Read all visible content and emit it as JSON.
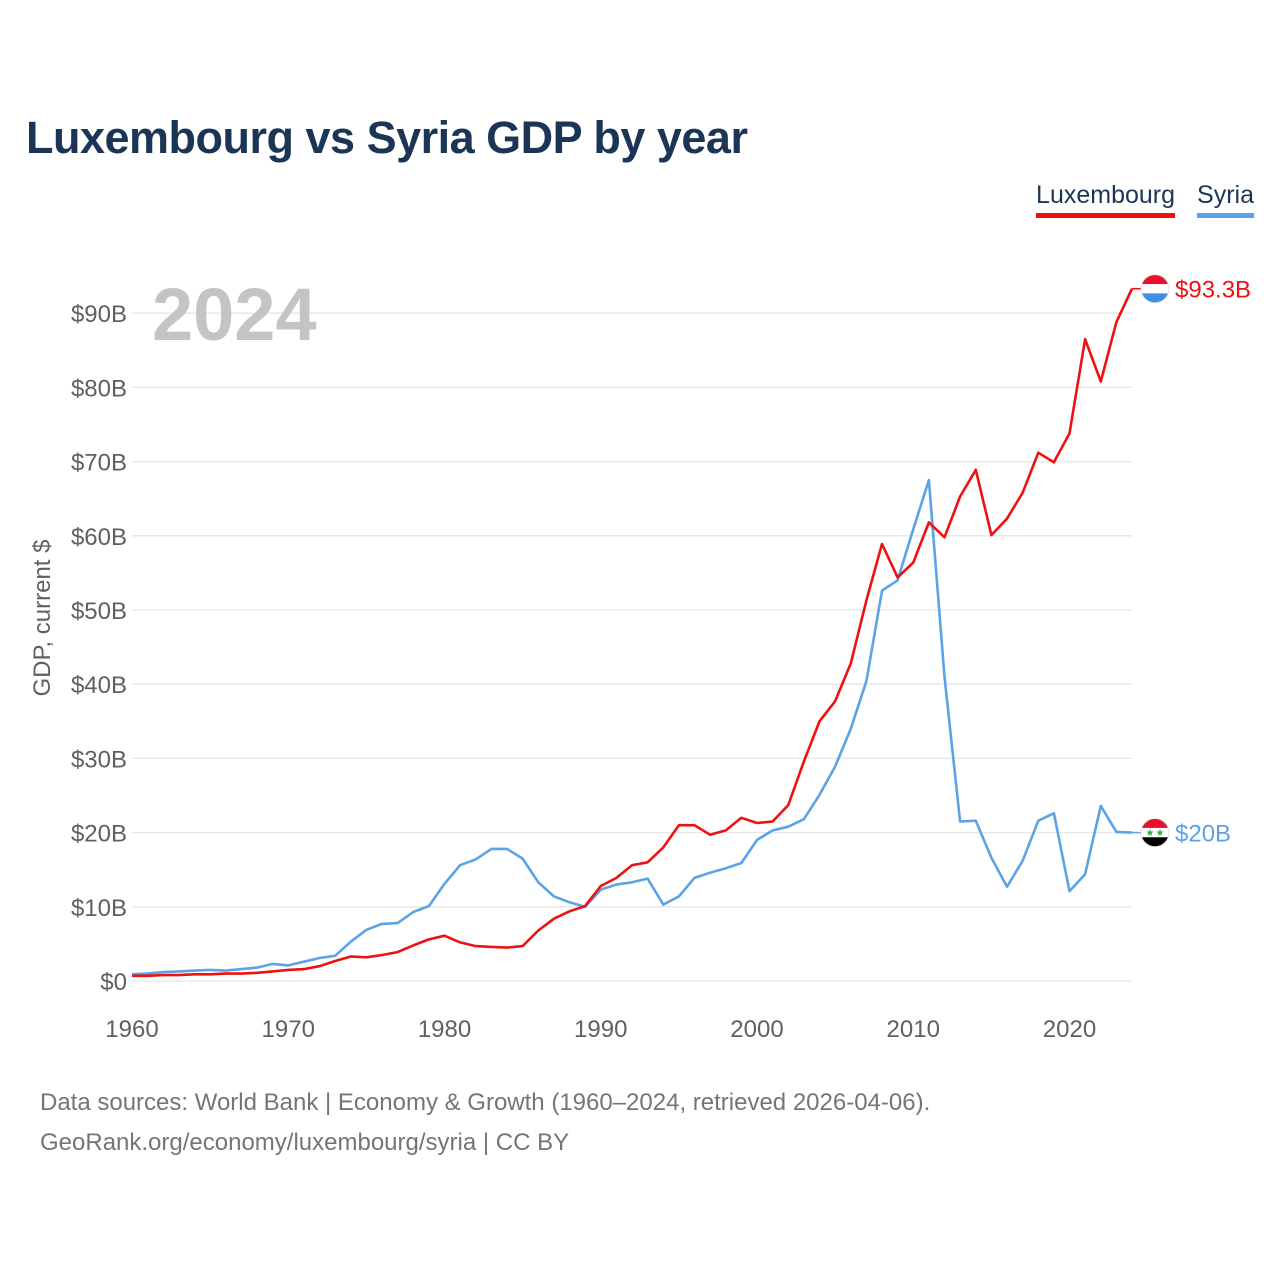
{
  "chart_data": {
    "type": "line",
    "title": "Luxembourg vs Syria GDP by year",
    "ylabel": "GDP, current $",
    "xlabel": "",
    "big_year": "2024",
    "xlim": [
      1960,
      2024
    ],
    "ylim": [
      0,
      93.3
    ],
    "x_ticks": [
      1960,
      1970,
      1980,
      1990,
      2000,
      2010,
      2020
    ],
    "y_ticks": [
      0,
      10,
      20,
      30,
      40,
      50,
      60,
      70,
      80,
      90
    ],
    "y_tick_labels": [
      "$0",
      "$10B",
      "$20B",
      "$30B",
      "$40B",
      "$50B",
      "$60B",
      "$70B",
      "$80B",
      "$90B"
    ],
    "years": [
      1960,
      1961,
      1962,
      1963,
      1964,
      1965,
      1966,
      1967,
      1968,
      1969,
      1970,
      1971,
      1972,
      1973,
      1974,
      1975,
      1976,
      1977,
      1978,
      1979,
      1980,
      1981,
      1982,
      1983,
      1984,
      1985,
      1986,
      1987,
      1988,
      1989,
      1990,
      1991,
      1992,
      1993,
      1994,
      1995,
      1996,
      1997,
      1998,
      1999,
      2000,
      2001,
      2002,
      2003,
      2004,
      2005,
      2006,
      2007,
      2008,
      2009,
      2010,
      2011,
      2012,
      2013,
      2014,
      2015,
      2016,
      2017,
      2018,
      2019,
      2020,
      2021,
      2022,
      2023,
      2024
    ],
    "series": [
      {
        "name": "Luxembourg",
        "color": "#ee1111",
        "end_label": "$93.3B",
        "flag": "luxembourg-flag",
        "values": [
          0.7,
          0.7,
          0.8,
          0.8,
          0.9,
          0.9,
          1.0,
          1.0,
          1.1,
          1.3,
          1.5,
          1.6,
          2.0,
          2.7,
          3.3,
          3.2,
          3.5,
          3.9,
          4.8,
          5.6,
          6.1,
          5.2,
          4.7,
          4.6,
          4.5,
          4.7,
          6.8,
          8.4,
          9.4,
          10.1,
          12.8,
          13.9,
          15.6,
          16.0,
          18.0,
          21.0,
          21.0,
          19.7,
          20.3,
          22.0,
          21.3,
          21.5,
          23.7,
          29.6,
          35.0,
          37.7,
          42.8,
          51.3,
          58.9,
          54.4,
          56.4,
          61.8,
          59.8,
          65.3,
          68.9,
          60.1,
          62.3,
          65.8,
          71.2,
          69.9,
          73.8,
          86.5,
          80.8,
          88.8,
          93.3
        ]
      },
      {
        "name": "Syria",
        "color": "#5ca3e6",
        "end_label": "$20B",
        "flag": "syria-flag",
        "values": [
          0.9,
          1.0,
          1.2,
          1.3,
          1.4,
          1.5,
          1.4,
          1.6,
          1.8,
          2.3,
          2.1,
          2.6,
          3.1,
          3.4,
          5.3,
          6.9,
          7.7,
          7.8,
          9.3,
          10.1,
          13.1,
          15.6,
          16.4,
          17.8,
          17.8,
          16.5,
          13.3,
          11.4,
          10.6,
          10.0,
          12.3,
          13.0,
          13.3,
          13.8,
          10.3,
          11.4,
          13.9,
          14.6,
          15.2,
          15.9,
          19.0,
          20.3,
          20.8,
          21.8,
          25.1,
          28.9,
          34.0,
          40.4,
          52.6,
          54.0,
          60.9,
          67.5,
          41.0,
          21.5,
          21.6,
          16.6,
          12.7,
          16.2,
          21.6,
          22.6,
          12.1,
          14.4,
          23.6,
          20.1,
          20.0
        ]
      }
    ],
    "legend": [
      "Luxembourg",
      "Syria"
    ],
    "legend_position": "top-right"
  },
  "footer": {
    "line1": "Data sources: World Bank | Economy & Growth (1960–2024, retrieved 2026-04-06).",
    "line2": "GeoRank.org/economy/luxembourg/syria | CC BY"
  }
}
